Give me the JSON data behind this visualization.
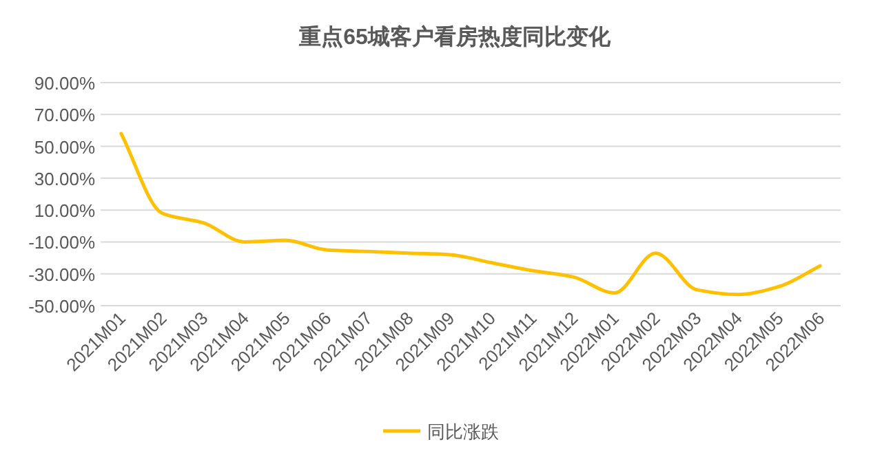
{
  "chart_data": {
    "type": "line",
    "title": "重点65城客户看房热度同比变化",
    "categories": [
      "2021M01",
      "2021M02",
      "2021M03",
      "2021M04",
      "2021M05",
      "2021M06",
      "2021M07",
      "2021M08",
      "2021M09",
      "2021M10",
      "2021M11",
      "2021M12",
      "2022M01",
      "2022M02",
      "2022M03",
      "2022M04",
      "2022M05",
      "2022M06"
    ],
    "series": [
      {
        "name": "同比涨跌",
        "color": "#ffc000",
        "values": [
          58,
          8,
          2,
          -10,
          -9,
          -15,
          -16,
          -17,
          -18,
          -23,
          -28,
          -32,
          -42,
          -17,
          -40,
          -43,
          -38,
          -25
        ]
      }
    ],
    "ylim": [
      -50,
      90
    ],
    "yticks": [
      {
        "value": -50,
        "label": "-50.00%"
      },
      {
        "value": -30,
        "label": "-30.00%"
      },
      {
        "value": -10,
        "label": "-10.00%"
      },
      {
        "value": 10,
        "label": "10.00%"
      },
      {
        "value": 30,
        "label": "30.00%"
      },
      {
        "value": 50,
        "label": "50.00%"
      },
      {
        "value": 70,
        "label": "70.00%"
      },
      {
        "value": 90,
        "label": "90.00%"
      }
    ],
    "grid": "y",
    "legend": "bottom",
    "marker": "none",
    "line_style": "solid"
  }
}
